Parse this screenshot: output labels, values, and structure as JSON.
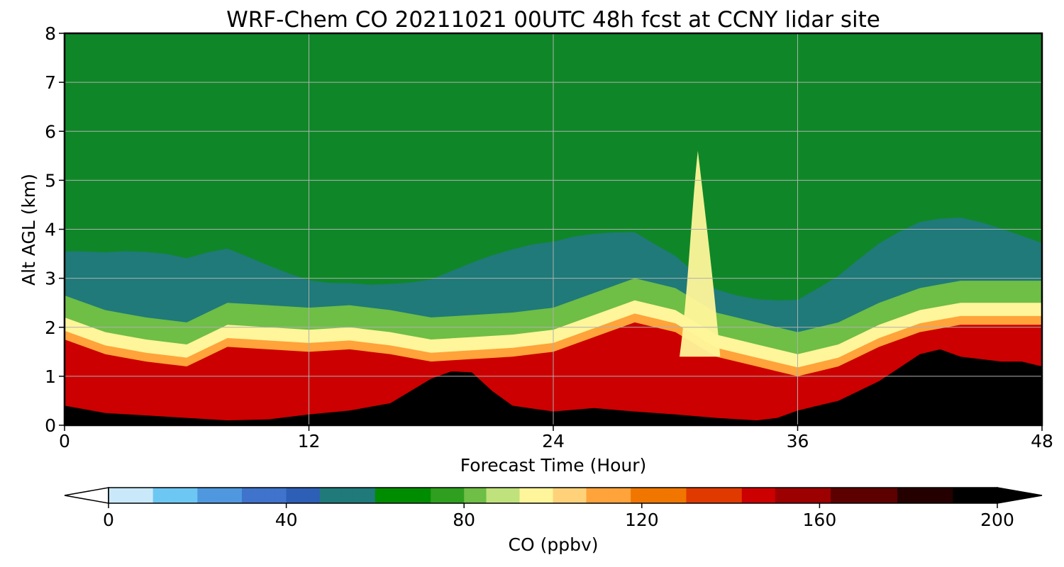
{
  "chart_data": {
    "type": "heatmap",
    "title": "WRF-Chem CO  20211021 00UTC 48h fcst at CCNY lidar site",
    "xlabel": "Forecast Time (Hour)",
    "ylabel": "Alt AGL (km)",
    "xlim": [
      0,
      48
    ],
    "ylim": [
      0,
      8
    ],
    "xticks": [
      0,
      12,
      24,
      36,
      48
    ],
    "yticks": [
      0,
      1,
      2,
      3,
      4,
      5,
      6,
      7,
      8
    ],
    "grid": true,
    "colorbar": {
      "label": "CO  (ppbv)",
      "range": [
        0,
        200
      ],
      "ticks": [
        0,
        40,
        80,
        120,
        160,
        200
      ],
      "extend": "both",
      "stops": [
        {
          "v": 0,
          "color": "#ffffff"
        },
        {
          "v": 10,
          "color": "#c9e9fa"
        },
        {
          "v": 20,
          "color": "#6cc7f3"
        },
        {
          "v": 30,
          "color": "#4f98df"
        },
        {
          "v": 40,
          "color": "#3f73cc"
        },
        {
          "v": 48,
          "color": "#2d5fb6"
        },
        {
          "v": 60,
          "color": "#1f7a79"
        },
        {
          "v": 72,
          "color": "#008c00"
        },
        {
          "v": 80,
          "color": "#2f9f1f"
        },
        {
          "v": 86,
          "color": "#6fbe45"
        },
        {
          "v": 92,
          "color": "#bfe27c"
        },
        {
          "v": 100,
          "color": "#fff59a"
        },
        {
          "v": 108,
          "color": "#ffd27a"
        },
        {
          "v": 118,
          "color": "#ffa33a"
        },
        {
          "v": 130,
          "color": "#f07600"
        },
        {
          "v": 142,
          "color": "#e03a00"
        },
        {
          "v": 150,
          "color": "#cc0000"
        },
        {
          "v": 162,
          "color": "#9c0000"
        },
        {
          "v": 178,
          "color": "#5c0000"
        },
        {
          "v": 190,
          "color": "#240000"
        },
        {
          "v": 200,
          "color": "#000000"
        }
      ]
    },
    "surface_layer_top_km": {
      "hours": [
        0,
        2,
        4,
        6,
        8,
        10,
        12,
        14,
        16,
        17,
        18,
        19,
        20,
        21,
        22,
        24,
        26,
        28,
        30,
        32,
        34,
        35,
        36,
        38,
        40,
        42,
        43,
        44,
        46,
        47,
        48
      ],
      "values": [
        0.4,
        0.25,
        0.2,
        0.15,
        0.1,
        0.12,
        0.22,
        0.3,
        0.45,
        0.7,
        0.95,
        1.1,
        1.08,
        0.7,
        0.4,
        0.28,
        0.35,
        0.28,
        0.22,
        0.15,
        0.1,
        0.15,
        0.3,
        0.5,
        0.9,
        1.45,
        1.55,
        1.4,
        1.3,
        1.3,
        1.2
      ]
    },
    "mixed_layer_top_km": {
      "hours": [
        0,
        2,
        4,
        6,
        8,
        10,
        12,
        14,
        16,
        18,
        20,
        22,
        24,
        26,
        28,
        30,
        32,
        34,
        36,
        38,
        40,
        42,
        44,
        46,
        48
      ],
      "values": [
        1.75,
        1.45,
        1.3,
        1.2,
        1.6,
        1.55,
        1.5,
        1.55,
        1.45,
        1.3,
        1.35,
        1.4,
        1.5,
        1.8,
        2.1,
        1.9,
        1.4,
        1.2,
        1.0,
        1.2,
        1.6,
        1.9,
        2.05,
        2.05,
        2.05
      ]
    }
  }
}
